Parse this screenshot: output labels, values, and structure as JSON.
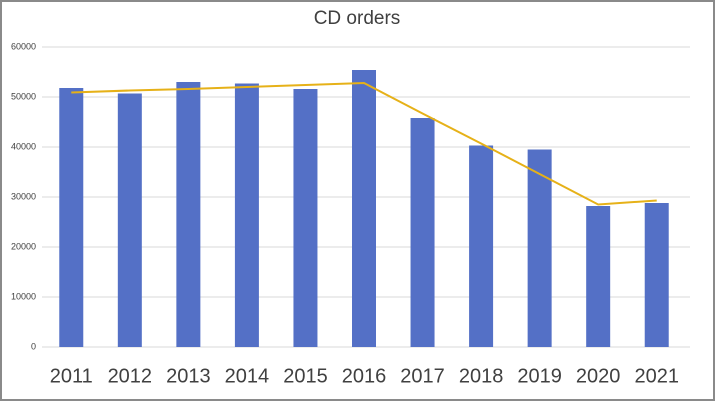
{
  "chart_data": {
    "type": "bar",
    "title": "CD orders",
    "categories": [
      "2011",
      "2012",
      "2013",
      "2014",
      "2015",
      "2016",
      "2017",
      "2018",
      "2019",
      "2020",
      "2021"
    ],
    "series": [
      {
        "type": "bar",
        "color": "#5470c6",
        "values": [
          51800,
          50700,
          53000,
          52700,
          51600,
          55400,
          45800,
          40300,
          39500,
          28200,
          28800
        ]
      },
      {
        "type": "line",
        "color": "#e6b118",
        "values": [
          50900,
          51300,
          51600,
          52000,
          52400,
          52800,
          46700,
          40700,
          34600,
          28500,
          29300
        ]
      }
    ],
    "ylim": [
      0,
      60000
    ],
    "yticks": [
      0,
      10000,
      20000,
      30000,
      40000,
      50000,
      60000
    ],
    "grid": true
  }
}
